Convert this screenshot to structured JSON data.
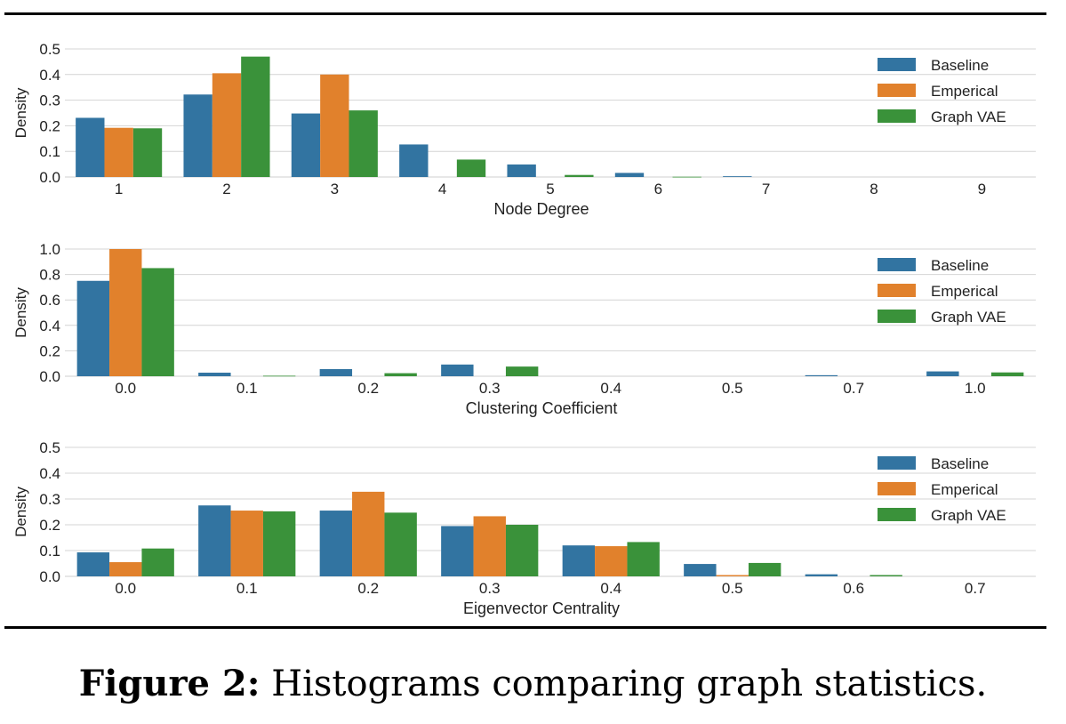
{
  "caption": {
    "label": "Figure 2:",
    "text": "Histograms comparing graph statistics."
  },
  "colors": {
    "Baseline": "#3274a1",
    "Emperical": "#e1812c",
    "Graph VAE": "#3a923a",
    "grid": "#d4d4d4"
  },
  "chart_data": [
    {
      "type": "bar",
      "xlabel": "Node Degree",
      "ylabel": "Density",
      "ylim": [
        0,
        0.5
      ],
      "yticks": [
        "0.0",
        "0.1",
        "0.2",
        "0.3",
        "0.4",
        "0.5"
      ],
      "categories": [
        "1",
        "2",
        "3",
        "4",
        "5",
        "6",
        "7",
        "8",
        "9"
      ],
      "grid": true,
      "legend": "right",
      "series": [
        {
          "name": "Baseline",
          "values": [
            0.231,
            0.322,
            0.248,
            0.127,
            0.049,
            0.016,
            0.003,
            0.0,
            0.0
          ]
        },
        {
          "name": "Emperical",
          "values": [
            0.192,
            0.405,
            0.4,
            0.0,
            0.0,
            0.0,
            0.0,
            0.0,
            0.0
          ]
        },
        {
          "name": "Graph VAE",
          "values": [
            0.19,
            0.47,
            0.26,
            0.068,
            0.008,
            0.001,
            0.0,
            0.0,
            0.0
          ]
        }
      ]
    },
    {
      "type": "bar",
      "xlabel": "Clustering Coefficient",
      "ylabel": "Density",
      "ylim": [
        0,
        1.0
      ],
      "yticks": [
        "0.0",
        "0.2",
        "0.4",
        "0.6",
        "0.8",
        "1.0"
      ],
      "categories": [
        "0.0",
        "0.1",
        "0.2",
        "0.3",
        "0.4",
        "0.5",
        "0.7",
        "1.0"
      ],
      "grid": true,
      "legend": "right",
      "series": [
        {
          "name": "Baseline",
          "values": [
            0.75,
            0.028,
            0.056,
            0.092,
            0.0,
            0.0,
            0.008,
            0.038
          ]
        },
        {
          "name": "Emperical",
          "values": [
            1.0,
            0.0,
            0.0,
            0.0,
            0.0,
            0.0,
            0.0,
            0.0
          ]
        },
        {
          "name": "Graph VAE",
          "values": [
            0.85,
            0.004,
            0.024,
            0.076,
            0.0,
            0.0,
            0.0,
            0.03
          ]
        }
      ]
    },
    {
      "type": "bar",
      "xlabel": "Eigenvector Centrality",
      "ylabel": "Density",
      "ylim": [
        0,
        0.5
      ],
      "yticks": [
        "0.0",
        "0.1",
        "0.2",
        "0.3",
        "0.4",
        "0.5"
      ],
      "categories": [
        "0.0",
        "0.1",
        "0.2",
        "0.3",
        "0.4",
        "0.5",
        "0.6",
        "0.7"
      ],
      "grid": true,
      "legend": "right",
      "series": [
        {
          "name": "Baseline",
          "values": [
            0.093,
            0.275,
            0.255,
            0.195,
            0.12,
            0.048,
            0.008,
            0.0
          ]
        },
        {
          "name": "Emperical",
          "values": [
            0.055,
            0.255,
            0.328,
            0.233,
            0.117,
            0.005,
            0.0,
            0.0
          ]
        },
        {
          "name": "Graph VAE",
          "values": [
            0.108,
            0.252,
            0.247,
            0.2,
            0.133,
            0.052,
            0.005,
            0.0
          ]
        }
      ]
    }
  ]
}
